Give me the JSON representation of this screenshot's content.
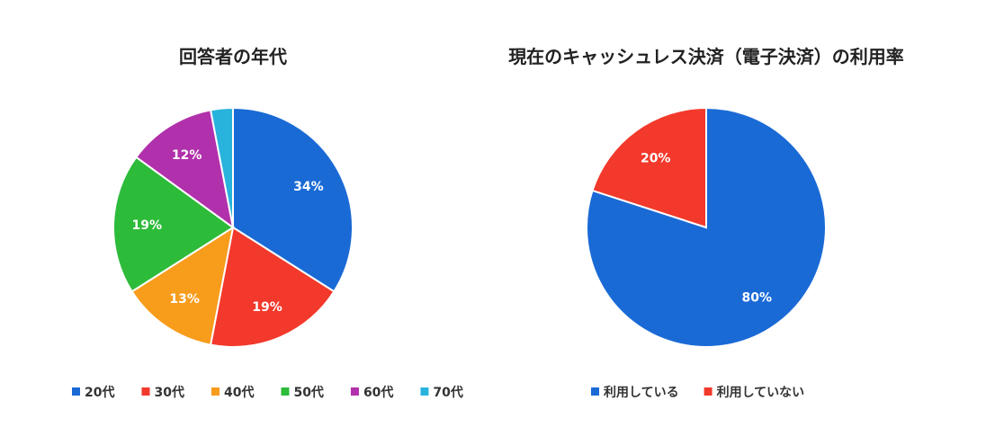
{
  "chart_data": [
    {
      "type": "pie",
      "title": "回答者の年代",
      "slices": [
        {
          "label": "20代",
          "value": 34,
          "display": "34%",
          "color": "#1a6ad6"
        },
        {
          "label": "30代",
          "value": 19,
          "display": "19%",
          "color": "#f2392b"
        },
        {
          "label": "40代",
          "value": 13,
          "display": "13%",
          "color": "#f89c1c"
        },
        {
          "label": "50代",
          "value": 19,
          "display": "19%",
          "color": "#2dbb3a"
        },
        {
          "label": "60代",
          "value": 12,
          "display": "12%",
          "color": "#b130ab"
        },
        {
          "label": "70代",
          "value": 3,
          "display": "",
          "color": "#27b3dc"
        }
      ],
      "legend_position": "bottom"
    },
    {
      "type": "pie",
      "title": "現在のキャッシュレス決済（電子決済）の利用率",
      "slices": [
        {
          "label": "利用している",
          "value": 80,
          "display": "80%",
          "color": "#1a6ad6"
        },
        {
          "label": "利用していない",
          "value": 20,
          "display": "20%",
          "color": "#f2392b"
        }
      ],
      "legend_position": "bottom"
    }
  ]
}
